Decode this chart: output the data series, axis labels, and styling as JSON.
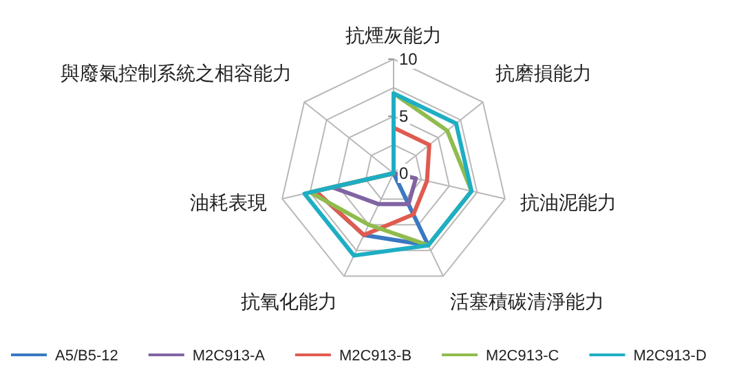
{
  "chart_data": {
    "type": "radar",
    "categories": [
      "抗煙灰能力",
      "抗磨損能力",
      "抗油泥能力",
      "活塞積碳清淨能力",
      "抗氧化能力",
      "油耗表現",
      "與廢氣控制系統之相容能力"
    ],
    "series": [
      {
        "name": "A5/B5-12",
        "color": "#3a78c2",
        "values": [
          0,
          0,
          0,
          7,
          6,
          7,
          0
        ]
      },
      {
        "name": "M2C913-A",
        "color": "#8064a2",
        "values": [
          0,
          0,
          2,
          3,
          3,
          5.5,
          0
        ]
      },
      {
        "name": "M2C913-B",
        "color": "#e05b4f",
        "values": [
          4,
          4,
          3,
          4,
          6,
          7,
          0
        ]
      },
      {
        "name": "M2C913-C",
        "color": "#8fbc4d",
        "values": [
          7,
          6,
          7,
          7,
          5,
          7.5,
          0
        ]
      },
      {
        "name": "M2C913-D",
        "color": "#1eaec4",
        "values": [
          7,
          7,
          7,
          7,
          8,
          8,
          0
        ]
      }
    ],
    "ylim": [
      0,
      10
    ],
    "yticks": [
      0,
      5,
      10
    ],
    "legend": "bottom"
  }
}
